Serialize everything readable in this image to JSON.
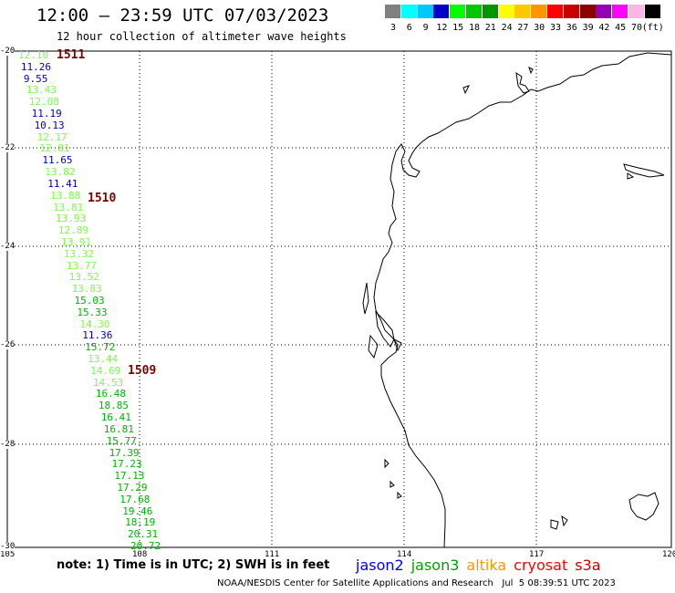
{
  "header": {
    "title": "12:00 – 23:59 UTC 07/03/2023",
    "subtitle": "12 hour collection of altimeter wave heights"
  },
  "colorbar": {
    "colors": [
      "#808080",
      "#00ffff",
      "#00c8ff",
      "#0000c8",
      "#00ff00",
      "#00c800",
      "#009600",
      "#ffff00",
      "#ffc800",
      "#ff9600",
      "#ff0000",
      "#c80000",
      "#8b0000",
      "#9600b4",
      "#ff00ff",
      "#ffb4e6",
      "#000000"
    ],
    "labels": [
      "3",
      "6",
      "9",
      "12",
      "15",
      "18",
      "21",
      "24",
      "27",
      "30",
      "33",
      "36",
      "39",
      "42",
      "45",
      "70",
      "(ft)"
    ]
  },
  "axes": {
    "lon_labels": [
      "105",
      "108",
      "111",
      "114",
      "117",
      "120"
    ],
    "lat_labels": [
      "-20",
      "-22",
      "-24",
      "-26",
      "-28",
      "-30"
    ]
  },
  "passes": [
    {
      "label": "1511"
    },
    {
      "label": "1510"
    },
    {
      "label": "1509"
    }
  ],
  "waves": [
    {
      "v": "12.10",
      "c": "#7cfc4c"
    },
    {
      "v": "11.26",
      "c": "#0000c8"
    },
    {
      "v": "9.55",
      "c": "#0000c8"
    },
    {
      "v": "13.43",
      "c": "#7cfc4c"
    },
    {
      "v": "12.08",
      "c": "#7cfc4c"
    },
    {
      "v": "11.19",
      "c": "#0000c8"
    },
    {
      "v": "10.13",
      "c": "#0000c8"
    },
    {
      "v": "12.17",
      "c": "#7cfc4c"
    },
    {
      "v": "12.81",
      "c": "#7cfc4c"
    },
    {
      "v": "11.65",
      "c": "#0000c8"
    },
    {
      "v": "13.82",
      "c": "#7cfc4c"
    },
    {
      "v": "11.41",
      "c": "#0000c8"
    },
    {
      "v": "13.88",
      "c": "#7cfc4c"
    },
    {
      "v": "13.81",
      "c": "#7cfc4c"
    },
    {
      "v": "13.93",
      "c": "#7cfc4c"
    },
    {
      "v": "12.89",
      "c": "#7cfc4c"
    },
    {
      "v": "13.91",
      "c": "#7cfc4c"
    },
    {
      "v": "13.32",
      "c": "#7cfc4c"
    },
    {
      "v": "13.77",
      "c": "#7cfc4c"
    },
    {
      "v": "13.52",
      "c": "#7cfc4c"
    },
    {
      "v": "13.83",
      "c": "#7cfc4c"
    },
    {
      "v": "15.03",
      "c": "#00b400"
    },
    {
      "v": "15.33",
      "c": "#00b400"
    },
    {
      "v": "14.30",
      "c": "#7cfc4c"
    },
    {
      "v": "11.36",
      "c": "#0000c8"
    },
    {
      "v": "15.72",
      "c": "#00b400"
    },
    {
      "v": "13.44",
      "c": "#7cfc4c"
    },
    {
      "v": "14.69",
      "c": "#7cfc4c"
    },
    {
      "v": "14.53",
      "c": "#7cfc4c"
    },
    {
      "v": "16.48",
      "c": "#00b400"
    },
    {
      "v": "18.85",
      "c": "#00b400"
    },
    {
      "v": "16.41",
      "c": "#00b400"
    },
    {
      "v": "16.81",
      "c": "#00b400"
    },
    {
      "v": "15.77",
      "c": "#00b400"
    },
    {
      "v": "17.39",
      "c": "#00b400"
    },
    {
      "v": "17.23",
      "c": "#00b400"
    },
    {
      "v": "17.13",
      "c": "#00b400"
    },
    {
      "v": "17.29",
      "c": "#00b400"
    },
    {
      "v": "17.68",
      "c": "#00b400"
    },
    {
      "v": "19.46",
      "c": "#00b400"
    },
    {
      "v": "18.19",
      "c": "#00b400"
    },
    {
      "v": "20.31",
      "c": "#00b400"
    },
    {
      "v": "20.72",
      "c": "#00b400"
    }
  ],
  "note": "note: 1) Time is in UTC; 2) SWH is in feet",
  "legend": [
    {
      "name": "jason2",
      "color": "#0000ff"
    },
    {
      "name": "jason3",
      "color": "#00a000"
    },
    {
      "name": "altika",
      "color": "#ff9600"
    },
    {
      "name": "cryosat",
      "color": "#ff0000"
    },
    {
      "name": "s3a",
      "color": "#c80000"
    }
  ],
  "footer": "NOAA/NESDIS Center for Satellite Applications and Research   Jul  5 08:39:51 UTC 2023"
}
